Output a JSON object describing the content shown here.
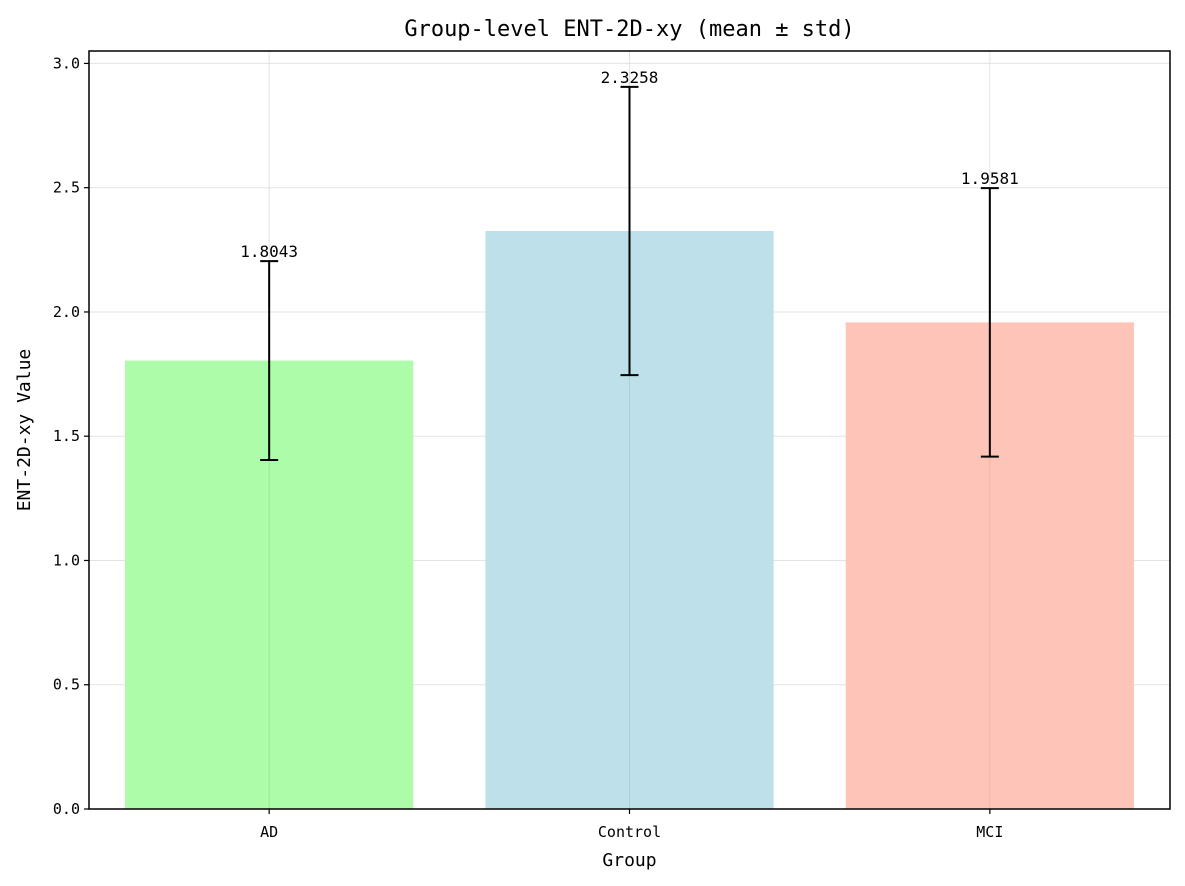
{
  "chart_data": {
    "type": "bar",
    "title": "Group-level ENT-2D-xy (mean ± std)",
    "xlabel": "Group",
    "ylabel": "ENT-2D-xy Value",
    "categories": [
      "AD",
      "Control",
      "MCI"
    ],
    "values": [
      1.8043,
      2.3258,
      1.9581
    ],
    "value_labels": [
      "1.8043",
      "2.3258",
      "1.9581"
    ],
    "errors": [
      0.4,
      0.58,
      0.54
    ],
    "colors": [
      "#acfca9",
      "#bde0ea",
      "#ffc4b8"
    ],
    "ylim": [
      0,
      3.05
    ],
    "yticks": [
      0.0,
      0.5,
      1.0,
      1.5,
      2.0,
      2.5,
      3.0
    ],
    "ytick_labels": [
      "0.0",
      "0.5",
      "1.0",
      "1.5",
      "2.0",
      "2.5",
      "3.0"
    ],
    "grid": true
  }
}
